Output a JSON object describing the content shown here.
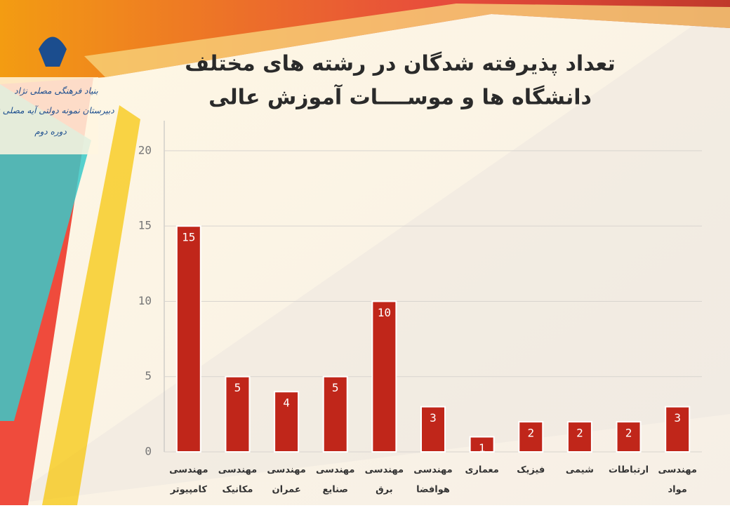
{
  "header": {
    "logo_lines": [
      "بنیاد فرهنگی مصلی نژاد",
      "دبیرستان نمونه دولتی آیه مصلی نژاد",
      "دوره دوم"
    ]
  },
  "chart_data": {
    "type": "bar",
    "title": [
      "تعداد پذیرفته شدگان در رشته های مختلف",
      "دانشگاه ها و موســــات آموزش عالی"
    ],
    "categories": [
      [
        "مهندسی",
        "کامپیوتر"
      ],
      [
        "مهندسی",
        "مکانیک"
      ],
      [
        "مهندسی",
        "عمران"
      ],
      [
        "مهندسی",
        "صنایع"
      ],
      [
        "مهندسی",
        "برق"
      ],
      [
        "مهندسی",
        "هوافضا"
      ],
      "معماری",
      "فیزیک",
      "شیمی",
      "ارتباطات",
      [
        "مهندسی",
        "مواد"
      ]
    ],
    "values": [
      15,
      5,
      4,
      5,
      10,
      3,
      1,
      2,
      2,
      2,
      3
    ],
    "color": "#c0261a",
    "ylim": [
      0,
      22
    ],
    "yticks": [
      0,
      5,
      10,
      15,
      20
    ],
    "grid": true
  }
}
